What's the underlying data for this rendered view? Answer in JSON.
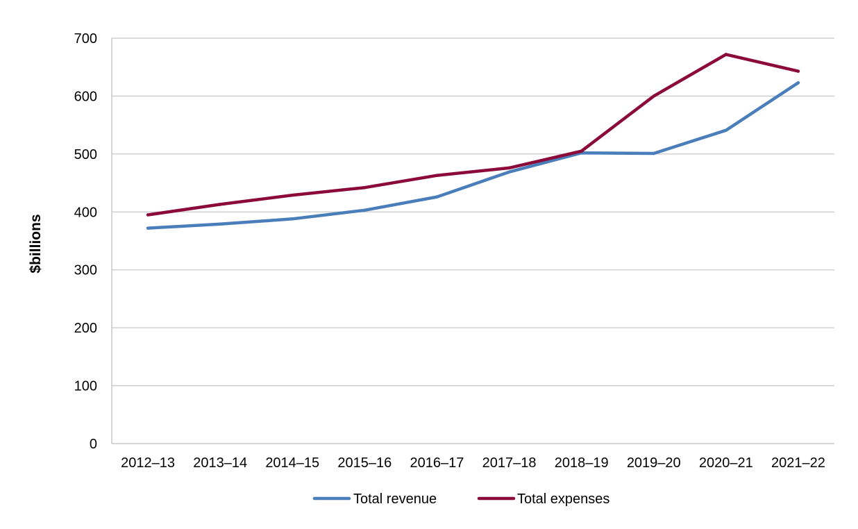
{
  "chart_data": {
    "type": "line",
    "title": "",
    "xlabel": "",
    "ylabel": "$billions",
    "ylim": [
      0,
      700
    ],
    "yticks": [
      0,
      100,
      200,
      300,
      400,
      500,
      600,
      700
    ],
    "grid": "horizontal",
    "legend_position": "bottom",
    "categories": [
      "2012–13",
      "2013–14",
      "2014–15",
      "2015–16",
      "2016–17",
      "2017–18",
      "2018–19",
      "2019–20",
      "2020–21",
      "2021–22"
    ],
    "series": [
      {
        "name": "Total revenue",
        "color": "#4a7ebb",
        "values": [
          372,
          379,
          388,
          403,
          426,
          469,
          502,
          501,
          541,
          623
        ]
      },
      {
        "name": "Total expenses",
        "color": "#8b0a3a",
        "values": [
          395,
          413,
          429,
          442,
          463,
          476,
          505,
          600,
          672,
          643
        ]
      }
    ]
  }
}
